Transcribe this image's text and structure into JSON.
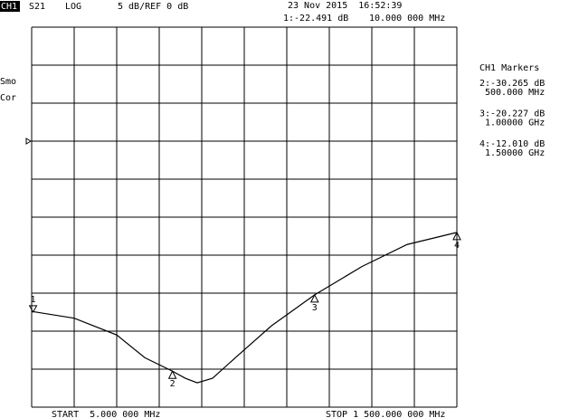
{
  "chart_data": {
    "type": "line",
    "channel": "CH1",
    "parameter": "S21",
    "format": "LOG",
    "scale_label": "5 dB/REF 0 dB",
    "timestamp": "23 Nov 2015  16:52:39",
    "side_labels": [
      "Smo",
      "Cor"
    ],
    "markers_title": "CH1 Markers",
    "start_label": "START  5.000 000 MHz",
    "stop_label": "STOP 1 500.000 000 MHz",
    "ref_value": 0,
    "xlim": [
      5,
      1500
    ],
    "ylim": [
      -35,
      15
    ],
    "xticks": [
      5,
      154.5,
      304,
      453.5,
      603,
      752.5,
      902,
      1051.5,
      1201,
      1350.5,
      1500
    ],
    "yticks": [
      15,
      10,
      5,
      0,
      -5,
      -10,
      -15,
      -20,
      -25,
      -30,
      -35
    ],
    "grid": true,
    "x": [
      5,
      154.5,
      304,
      403,
      500,
      545,
      587,
      641,
      721,
      848,
      1000,
      1166,
      1325,
      1500
    ],
    "series": [
      {
        "color": "#000000",
        "values": [
          -22.4,
          -23.3,
          -25.5,
          -28.5,
          -30.265,
          -31.2,
          -31.8,
          -31.2,
          -28.5,
          -24.3,
          -20.227,
          -16.5,
          -13.6,
          -12.01
        ]
      }
    ],
    "markers": [
      {
        "label": "1",
        "x": 10,
        "value": -22.491,
        "value_label": "1:-22.491 dB",
        "x_label": "10.000 000 MHz"
      },
      {
        "label": "2",
        "x": 500,
        "value": -30.265,
        "value_label": "2:-30.265 dB",
        "x_label": "500.000 MHz"
      },
      {
        "label": "3",
        "x": 1000,
        "value": -20.227,
        "value_label": "3:-20.227 dB",
        "x_label": "1.00000 GHz"
      },
      {
        "label": "4",
        "x": 1500,
        "value": -12.01,
        "value_label": "4:-12.010 dB",
        "x_label": "1.50000 GHz"
      }
    ]
  }
}
